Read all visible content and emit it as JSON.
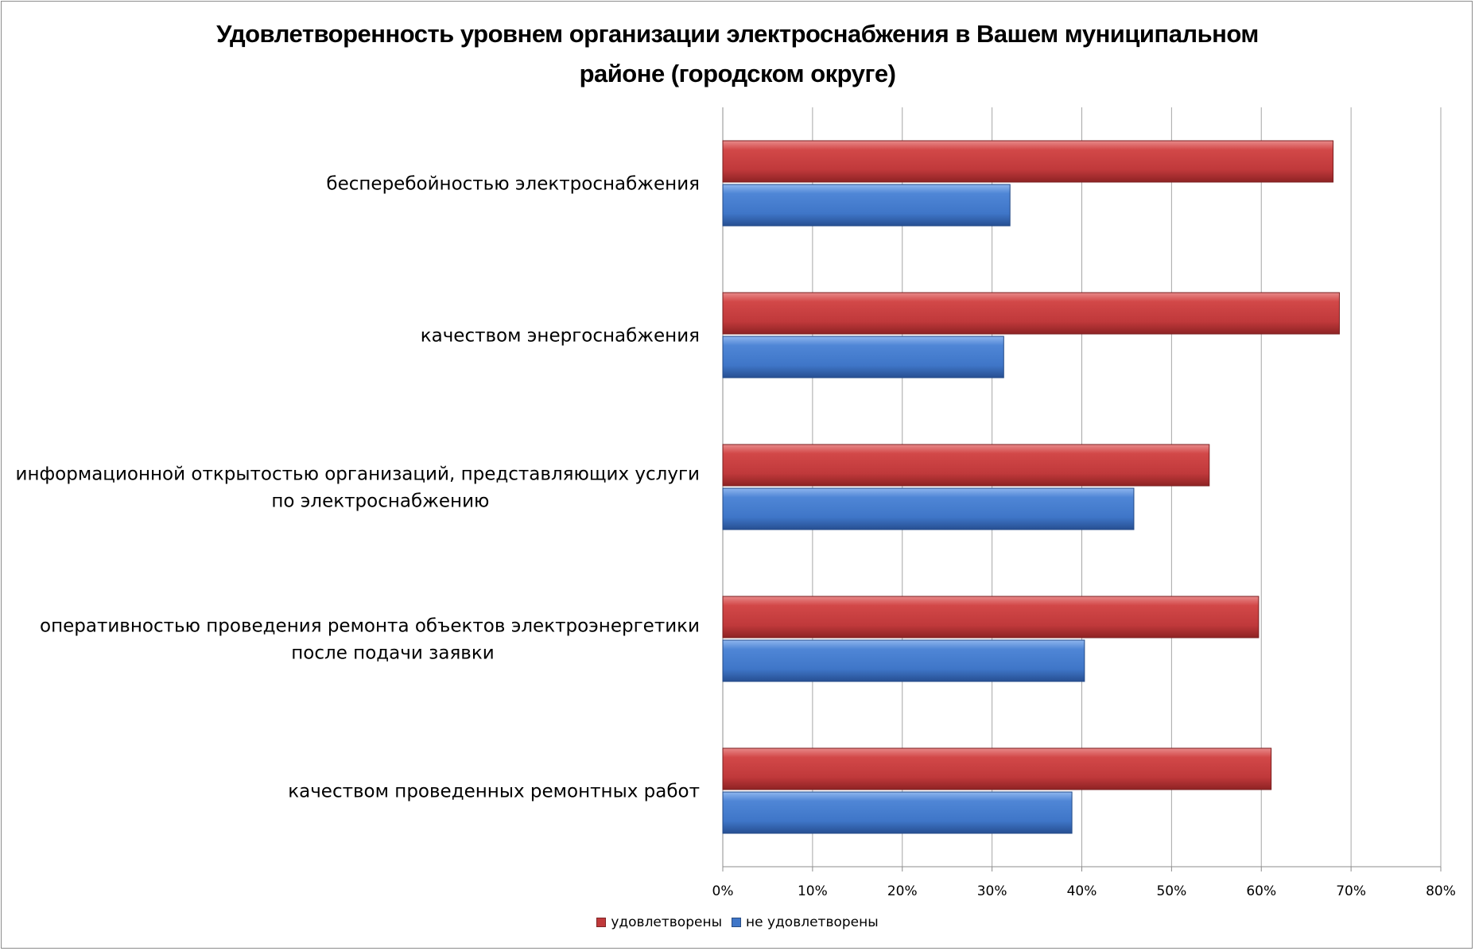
{
  "chart_data": {
    "type": "bar",
    "orientation": "horizontal",
    "title_lines": [
      "Удовлетворенность уровнем организации электроснабжения в Вашем муниципальном",
      "районе (городском округе)"
    ],
    "categories": [
      [
        "бесперебойностью  электроснабжения"
      ],
      [
        "качеством энергоснабжения"
      ],
      [
        "информационной открытостью организаций, представляющих услуги",
        "по электроснабжению"
      ],
      [
        "оперативностью проведения ремонта объектов электроэнергетики",
        "после подачи заявки"
      ],
      [
        "качеством проведенных ремонтных работ"
      ]
    ],
    "series": [
      {
        "name": "удовлетворены",
        "color": "#C0393B",
        "values": [
          68,
          68.7,
          54.2,
          59.7,
          61.1
        ]
      },
      {
        "name": "не удовлетворены",
        "color": "#3F76C8",
        "values": [
          32,
          31.3,
          45.8,
          40.3,
          38.9
        ]
      }
    ],
    "x_ticks": [
      "0%",
      "10%",
      "20%",
      "30%",
      "40%",
      "50%",
      "60%",
      "70%",
      "80%"
    ],
    "xlim": [
      0,
      80
    ],
    "grid": true,
    "legend_position": "bottom"
  }
}
